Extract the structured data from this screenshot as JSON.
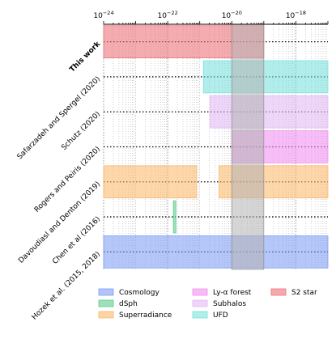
{
  "chart_data": {
    "type": "range-bar",
    "title": "",
    "xlabel": "",
    "ylabel": "",
    "x_scale": "log",
    "xlim": [
      1e-24,
      1e-17
    ],
    "x_ticks": [
      {
        "value": 1e-24,
        "base": "10",
        "exp": "−24"
      },
      {
        "value": 1e-22,
        "base": "10",
        "exp": "−22"
      },
      {
        "value": 1e-20,
        "base": "10",
        "exp": "−20"
      },
      {
        "value": 1e-18,
        "base": "10",
        "exp": "−18"
      }
    ],
    "categories": [
      "This work",
      "Safarzadeh and Spergel (2020)",
      "Schutz (2020)",
      "Rogers and Peiris (2020)",
      "Davoudiasl and Denton (2019)",
      "Chen et al (2016)",
      "Hozek et al. (2015, 2018)"
    ],
    "bold_category": "This work",
    "highlight_band": {
      "from": 1e-20,
      "to": 1e-19,
      "color": "#b3b3b3"
    },
    "series": [
      {
        "name": "Cosmology",
        "color": "#7f9cf5",
        "ranges": [
          {
            "category": "Hozek et al. (2015, 2018)",
            "from": 1e-24,
            "to": 1e-17
          }
        ]
      },
      {
        "name": "dSph",
        "color": "#5ccc8c",
        "ranges": [
          {
            "category": "Chen et al (2016)",
            "from": 1.5e-22,
            "to": 1.8e-22
          }
        ]
      },
      {
        "name": "Superradiance",
        "color": "#fbb86a",
        "ranges": [
          {
            "category": "Davoudiasl and Denton (2019)",
            "from": 1e-24,
            "to": 8e-22
          },
          {
            "category": "Davoudiasl and Denton (2019)",
            "from": 4e-21,
            "to": 1e-17
          }
        ]
      },
      {
        "name": "Ly-α forest",
        "color": "#f28ef0",
        "ranges": [
          {
            "category": "Rogers and Peiris (2020)",
            "from": 1e-20,
            "to": 1e-17
          }
        ]
      },
      {
        "name": "Subhalos",
        "color": "#e2b8f5",
        "ranges": [
          {
            "category": "Schutz (2020)",
            "from": 2.1e-21,
            "to": 1e-17
          }
        ]
      },
      {
        "name": "UFD",
        "color": "#79e2dc",
        "ranges": [
          {
            "category": "Safarzadeh and Spergel (2020)",
            "from": 1.3e-21,
            "to": 1e-17
          }
        ]
      },
      {
        "name": "S2 star",
        "color": "#ee7078",
        "ranges": [
          {
            "category": "This work",
            "from": 1e-24,
            "to": 1e-19
          }
        ]
      }
    ],
    "legend_placement": "bottom",
    "legend_columns": 3,
    "grid": {
      "x": true,
      "y": true,
      "x_style": "dotted",
      "y_style": "dotted"
    }
  }
}
